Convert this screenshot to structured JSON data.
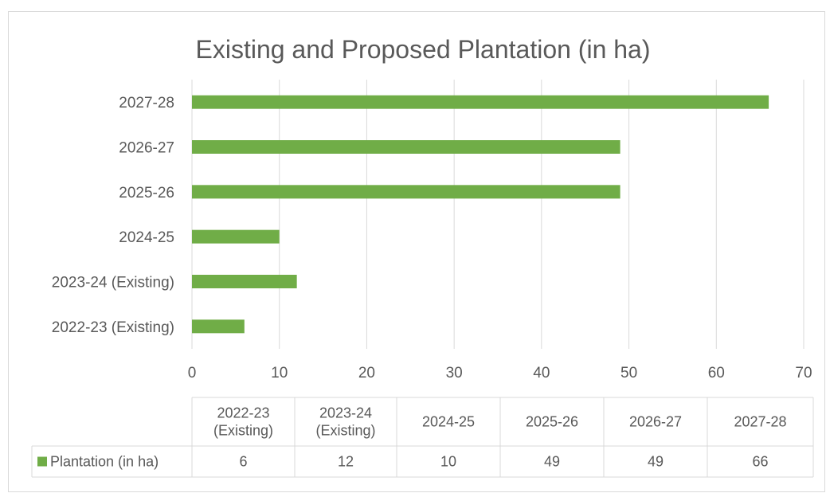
{
  "chart_data": {
    "type": "bar",
    "orientation": "horizontal",
    "title": "Existing and Proposed Plantation (in ha)",
    "axis_labels": [
      "2027-28",
      "2026-27",
      "2025-26",
      "2024-25",
      "2023-24 (Existing)",
      "2022-23 (Existing)"
    ],
    "table_headers": [
      [
        "2022-23",
        "(Existing)"
      ],
      [
        "2023-24",
        "(Existing)"
      ],
      [
        "2024-25"
      ],
      [
        "2025-26"
      ],
      [
        "2026-27"
      ],
      [
        "2027-28"
      ]
    ],
    "categories": [
      "2022-23 (Existing)",
      "2023-24 (Existing)",
      "2024-25",
      "2025-26",
      "2026-27",
      "2027-28"
    ],
    "series": [
      {
        "name": "Plantation (in ha)",
        "values": [
          6,
          12,
          10,
          49,
          49,
          66
        ]
      }
    ],
    "xlim": [
      0,
      70
    ],
    "x_ticks": [
      0,
      10,
      20,
      30,
      40,
      50,
      60,
      70
    ],
    "grid": true,
    "legend": "data-table-left",
    "bar_color": "#70ad47"
  }
}
